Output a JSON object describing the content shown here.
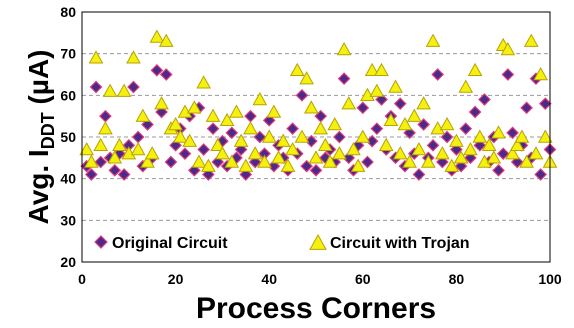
{
  "chart_data": {
    "type": "scatter",
    "xlabel": "Process Corners",
    "ylabel": {
      "main": "Avg. I",
      "sub": "DDT",
      "unit": " (µA)"
    },
    "xlim": [
      0,
      100
    ],
    "ylim": [
      20,
      80
    ],
    "x_ticks": [
      "0",
      "20",
      "40",
      "60",
      "80",
      "100"
    ],
    "y_ticks": [
      "20",
      "30",
      "40",
      "50",
      "60",
      "70",
      "80"
    ],
    "grid": "horizontal dashed",
    "legend_position": "bottom-inside",
    "series": [
      {
        "name": "Original Circuit",
        "marker": "diamond",
        "color": "#4b2a8c",
        "edge_color": "#e23a7a",
        "points": [
          [
            1,
            43
          ],
          [
            2,
            41
          ],
          [
            3,
            62
          ],
          [
            4,
            44
          ],
          [
            5,
            55
          ],
          [
            6,
            45
          ],
          [
            7,
            42
          ],
          [
            8,
            46
          ],
          [
            9,
            41
          ],
          [
            10,
            48
          ],
          [
            11,
            62
          ],
          [
            12,
            50
          ],
          [
            13,
            43
          ],
          [
            14,
            53
          ],
          [
            15,
            45
          ],
          [
            16,
            66
          ],
          [
            17,
            56
          ],
          [
            18,
            65
          ],
          [
            19,
            44
          ],
          [
            20,
            48
          ],
          [
            21,
            52
          ],
          [
            22,
            46
          ],
          [
            23,
            55
          ],
          [
            24,
            42
          ],
          [
            25,
            57
          ],
          [
            26,
            47
          ],
          [
            27,
            41
          ],
          [
            28,
            52
          ],
          [
            29,
            44
          ],
          [
            30,
            49
          ],
          [
            31,
            43
          ],
          [
            32,
            51
          ],
          [
            33,
            45
          ],
          [
            34,
            47
          ],
          [
            35,
            41
          ],
          [
            36,
            55
          ],
          [
            37,
            44
          ],
          [
            38,
            50
          ],
          [
            39,
            46
          ],
          [
            40,
            54
          ],
          [
            41,
            43
          ],
          [
            42,
            48
          ],
          [
            43,
            45
          ],
          [
            44,
            42
          ],
          [
            45,
            52
          ],
          [
            46,
            46
          ],
          [
            47,
            60
          ],
          [
            48,
            43
          ],
          [
            49,
            49
          ],
          [
            50,
            42
          ],
          [
            51,
            55
          ],
          [
            52,
            45
          ],
          [
            53,
            47
          ],
          [
            54,
            44
          ],
          [
            55,
            50
          ],
          [
            56,
            64
          ],
          [
            57,
            45
          ],
          [
            58,
            42
          ],
          [
            59,
            48
          ],
          [
            60,
            57
          ],
          [
            61,
            44
          ],
          [
            62,
            49
          ],
          [
            63,
            52
          ],
          [
            64,
            59
          ],
          [
            65,
            47
          ],
          [
            66,
            55
          ],
          [
            67,
            45
          ],
          [
            68,
            58
          ],
          [
            69,
            43
          ],
          [
            70,
            51
          ],
          [
            71,
            46
          ],
          [
            72,
            41
          ],
          [
            73,
            53
          ],
          [
            74,
            45
          ],
          [
            75,
            48
          ],
          [
            76,
            65
          ],
          [
            77,
            44
          ],
          [
            78,
            50
          ],
          [
            79,
            42
          ],
          [
            80,
            47
          ],
          [
            81,
            43
          ],
          [
            82,
            52
          ],
          [
            83,
            45
          ],
          [
            84,
            56
          ],
          [
            85,
            48
          ],
          [
            86,
            59
          ],
          [
            87,
            44
          ],
          [
            88,
            50
          ],
          [
            89,
            42
          ],
          [
            90,
            46
          ],
          [
            91,
            65
          ],
          [
            92,
            51
          ],
          [
            93,
            44
          ],
          [
            94,
            48
          ],
          [
            95,
            57
          ],
          [
            96,
            45
          ],
          [
            97,
            64
          ],
          [
            98,
            41
          ],
          [
            99,
            58
          ],
          [
            100,
            47
          ]
        ]
      },
      {
        "name": "Circuit with Trojan",
        "marker": "triangle",
        "color": "#f5f10e",
        "edge_color": "#b8a300",
        "points": [
          [
            1,
            47
          ],
          [
            2,
            44
          ],
          [
            3,
            69
          ],
          [
            4,
            48
          ],
          [
            5,
            52
          ],
          [
            6,
            61
          ],
          [
            7,
            45
          ],
          [
            8,
            48
          ],
          [
            9,
            61
          ],
          [
            10,
            46
          ],
          [
            11,
            69
          ],
          [
            12,
            47
          ],
          [
            13,
            55
          ],
          [
            14,
            44
          ],
          [
            15,
            46
          ],
          [
            16,
            74
          ],
          [
            17,
            58
          ],
          [
            18,
            73
          ],
          [
            19,
            52
          ],
          [
            20,
            53
          ],
          [
            21,
            50
          ],
          [
            22,
            56
          ],
          [
            23,
            49
          ],
          [
            24,
            57
          ],
          [
            25,
            44
          ],
          [
            26,
            63
          ],
          [
            27,
            43
          ],
          [
            28,
            55
          ],
          [
            29,
            48
          ],
          [
            30,
            46
          ],
          [
            31,
            54
          ],
          [
            32,
            44
          ],
          [
            33,
            56
          ],
          [
            34,
            49
          ],
          [
            35,
            43
          ],
          [
            36,
            52
          ],
          [
            37,
            46
          ],
          [
            38,
            59
          ],
          [
            39,
            44
          ],
          [
            40,
            50
          ],
          [
            41,
            56
          ],
          [
            42,
            45
          ],
          [
            43,
            49
          ],
          [
            44,
            43
          ],
          [
            45,
            47
          ],
          [
            46,
            66
          ],
          [
            47,
            50
          ],
          [
            48,
            64
          ],
          [
            49,
            57
          ],
          [
            50,
            45
          ],
          [
            51,
            52
          ],
          [
            52,
            48
          ],
          [
            53,
            44
          ],
          [
            54,
            53
          ],
          [
            55,
            46
          ],
          [
            56,
            71
          ],
          [
            57,
            58
          ],
          [
            58,
            47
          ],
          [
            59,
            43
          ],
          [
            60,
            50
          ],
          [
            61,
            60
          ],
          [
            62,
            66
          ],
          [
            63,
            61
          ],
          [
            64,
            66
          ],
          [
            65,
            48
          ],
          [
            66,
            54
          ],
          [
            67,
            62
          ],
          [
            68,
            46
          ],
          [
            69,
            53
          ],
          [
            70,
            44
          ],
          [
            71,
            55
          ],
          [
            72,
            47
          ],
          [
            73,
            58
          ],
          [
            74,
            44
          ],
          [
            75,
            73
          ],
          [
            76,
            52
          ],
          [
            77,
            46
          ],
          [
            78,
            53
          ],
          [
            79,
            43
          ],
          [
            80,
            49
          ],
          [
            81,
            45
          ],
          [
            82,
            62
          ],
          [
            83,
            47
          ],
          [
            84,
            66
          ],
          [
            85,
            50
          ],
          [
            86,
            44
          ],
          [
            87,
            48
          ],
          [
            88,
            45
          ],
          [
            89,
            51
          ],
          [
            90,
            72
          ],
          [
            91,
            71
          ],
          [
            92,
            46
          ],
          [
            93,
            48
          ],
          [
            94,
            50
          ],
          [
            95,
            44
          ],
          [
            96,
            73
          ],
          [
            97,
            46
          ],
          [
            98,
            65
          ],
          [
            99,
            50
          ],
          [
            100,
            44
          ]
        ]
      }
    ]
  }
}
